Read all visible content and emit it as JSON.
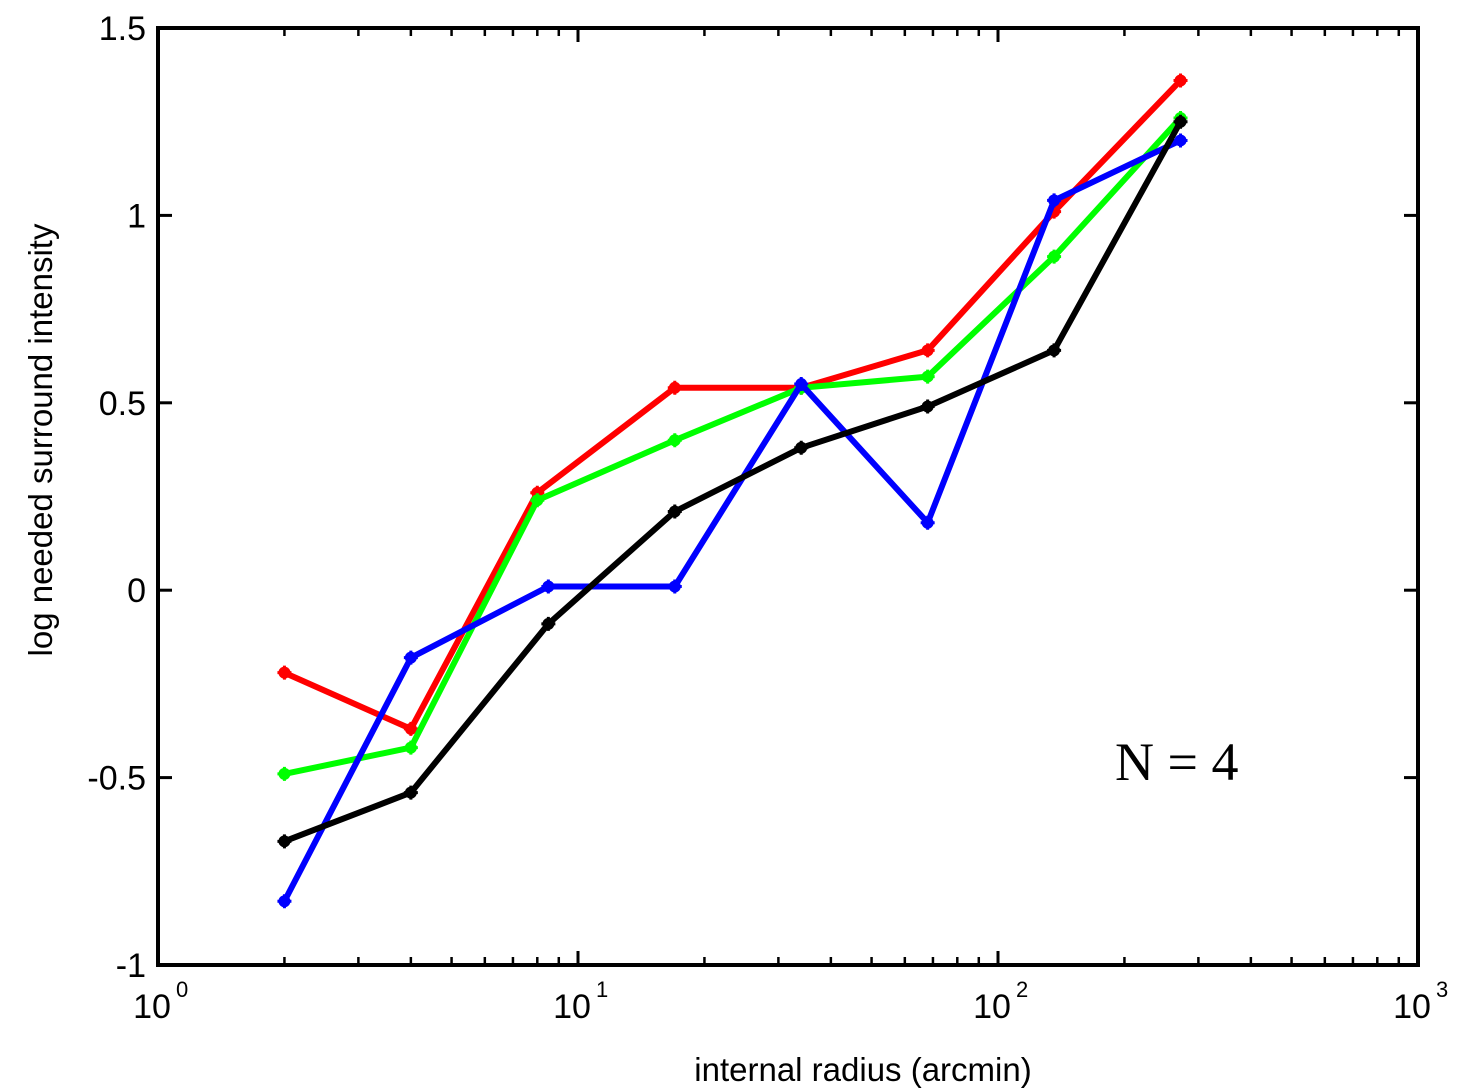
{
  "chart_data": {
    "type": "line",
    "title": "",
    "xlabel": "internal radius (arcmin)",
    "ylabel": "log needed surround intensity",
    "xscale": "log",
    "xlim": [
      1,
      1000
    ],
    "ylim": [
      -1,
      1.5
    ],
    "x_ticks": [
      {
        "value": 1,
        "base": "10",
        "exp": "0"
      },
      {
        "value": 10,
        "base": "10",
        "exp": "1"
      },
      {
        "value": 100,
        "base": "10",
        "exp": "2"
      },
      {
        "value": 1000,
        "base": "10",
        "exp": "3"
      }
    ],
    "y_ticks": [
      {
        "value": -1,
        "label": "-1"
      },
      {
        "value": -0.5,
        "label": "-0.5"
      },
      {
        "value": 0,
        "label": "0"
      },
      {
        "value": 0.5,
        "label": "0.5"
      },
      {
        "value": 1,
        "label": "1"
      },
      {
        "value": 1.5,
        "label": "1.5"
      }
    ],
    "grid": false,
    "annotation": "N = 4",
    "series": [
      {
        "color": "#ff0000",
        "x": [
          2,
          4,
          8,
          17,
          34,
          68,
          136,
          272
        ],
        "y": [
          -0.22,
          -0.37,
          0.26,
          0.54,
          0.54,
          0.64,
          1.01,
          1.36
        ]
      },
      {
        "color": "#00ff00",
        "x": [
          2,
          4,
          8,
          17,
          34,
          68,
          136,
          272
        ],
        "y": [
          -0.49,
          -0.42,
          0.24,
          0.4,
          0.54,
          0.57,
          0.89,
          1.26
        ]
      },
      {
        "color": "#0000ff",
        "x": [
          2,
          4,
          8.5,
          17,
          34,
          68,
          136,
          272
        ],
        "y": [
          -0.83,
          -0.18,
          0.01,
          0.01,
          0.55,
          0.18,
          1.04,
          1.2
        ]
      },
      {
        "color": "#000000",
        "x": [
          2,
          4,
          8.5,
          17,
          34,
          68,
          136,
          272
        ],
        "y": [
          -0.67,
          -0.54,
          -0.09,
          0.21,
          0.38,
          0.49,
          0.64,
          1.25
        ]
      }
    ]
  }
}
